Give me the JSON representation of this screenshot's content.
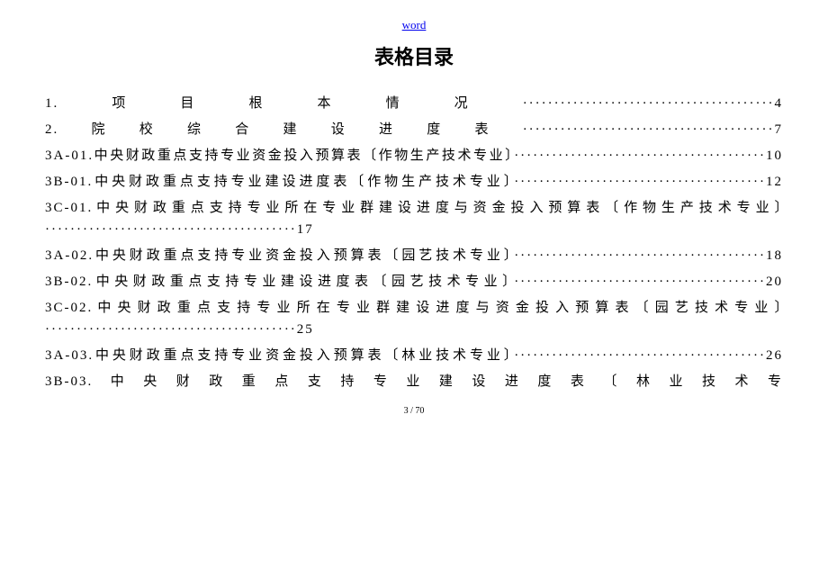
{
  "header": {
    "link": "word"
  },
  "title": "表格目录",
  "entries": [
    "1.项目根本情况········································4",
    "2.院校综合建设进度表········································7",
    "3A-01.中央财政重点支持专业资金投入预算表〔作物生产技术专业〕········································10",
    "3B-01.中央财政重点支持专业建设进度表〔作物生产技术专业〕········································12",
    "3C-01.中央财政重点支持专业所在专业群建设进度与资金投入预算表〔作物生产技术专业〕········································17",
    "3A-02.中央财政重点支持专业资金投入预算表〔园艺技术专业〕········································18",
    "3B-02.中央财政重点支持专业建设进度表〔园艺技术专业〕········································20",
    "3C-02.中央财政重点支持专业所在专业群建设进度与资金投入预算表〔园艺技术专业〕········································25",
    "3A-03.中央财政重点支持专业资金投入预算表〔林业技术专业〕········································26",
    "3B-03.中央财政重点支持专业建设进度表〔林业技术专"
  ],
  "footer": "3 / 70"
}
